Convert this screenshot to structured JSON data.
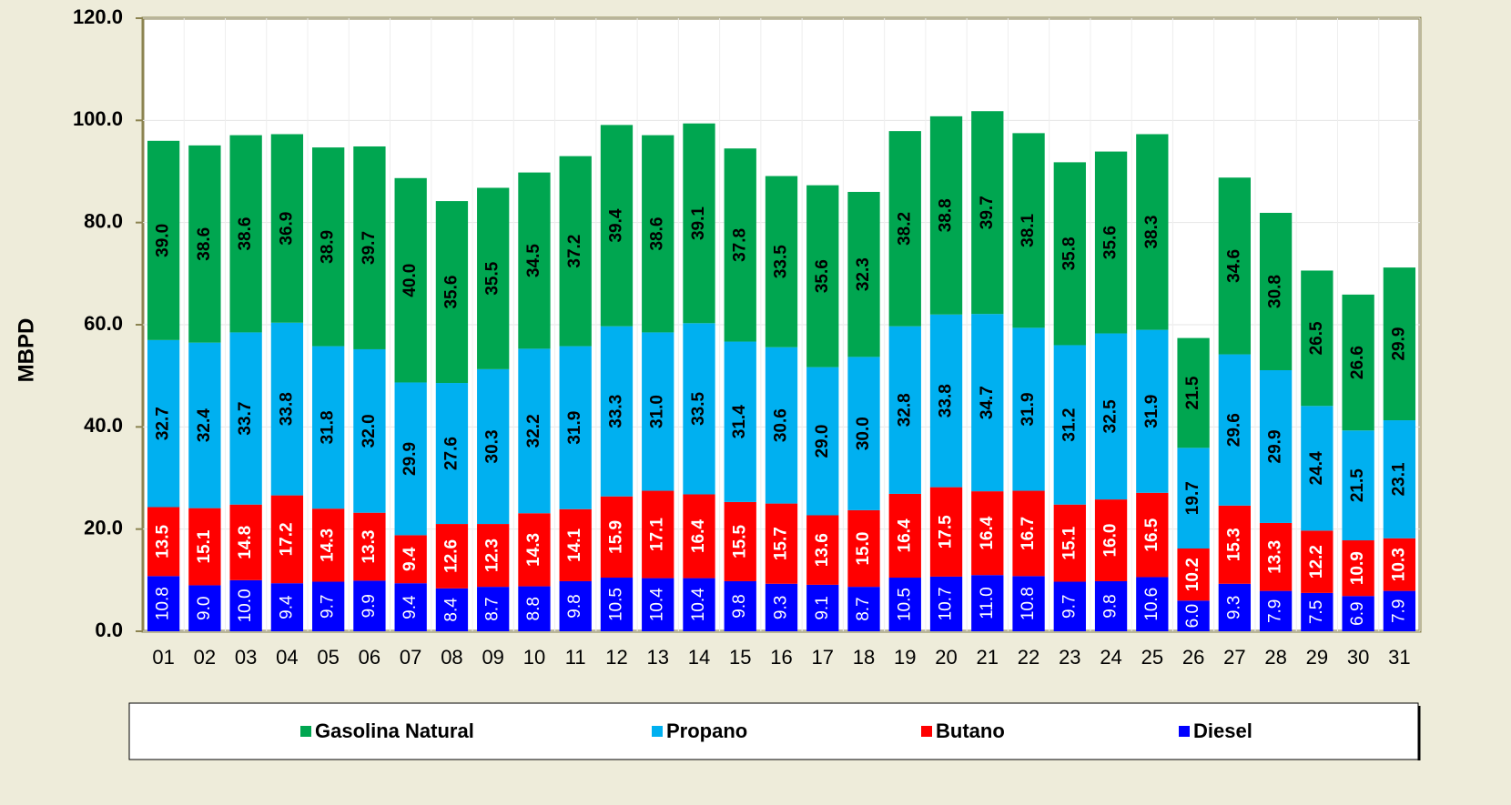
{
  "chart_data": {
    "type": "stacked-bar",
    "y_label": "MBPD",
    "categories": [
      "01",
      "02",
      "03",
      "04",
      "05",
      "06",
      "07",
      "08",
      "09",
      "10",
      "11",
      "12",
      "13",
      "14",
      "15",
      "16",
      "17",
      "18",
      "19",
      "20",
      "21",
      "22",
      "23",
      "24",
      "25",
      "26",
      "27",
      "28",
      "29",
      "30",
      "31"
    ],
    "series": [
      {
        "name": "Diesel",
        "color": "#0000ff",
        "label_color": "#ffffff",
        "values": [
          10.8,
          9.0,
          10.0,
          9.4,
          9.7,
          9.9,
          9.4,
          8.4,
          8.7,
          8.8,
          9.8,
          10.5,
          10.4,
          10.4,
          9.8,
          9.3,
          9.1,
          8.7,
          10.5,
          10.7,
          11.0,
          10.8,
          9.7,
          9.8,
          10.6,
          6.0,
          9.3,
          7.9,
          7.5,
          6.9,
          7.9
        ],
        "value_labels": [
          "10.8",
          "9.0",
          "10.0",
          "9.4",
          "9.7",
          "9.9",
          "9.4",
          "8.4",
          "8.7",
          "8.8",
          "9.8",
          "10.5",
          "10.4",
          "10.4",
          "9.8",
          "9.3",
          "9.1",
          "8.7",
          "10.5",
          "10.7",
          "11.0",
          "10.8",
          "9.7",
          "9.8",
          "10.6",
          "6.0",
          "9.3",
          "7.9",
          "7.5",
          "6.9",
          "7.9"
        ]
      },
      {
        "name": "Butano",
        "color": "#ff0000",
        "label_color": "#ffffff",
        "values": [
          13.5,
          15.1,
          14.8,
          17.2,
          14.3,
          13.3,
          9.4,
          12.6,
          12.3,
          14.3,
          14.1,
          15.9,
          17.1,
          16.4,
          15.5,
          15.7,
          13.6,
          15.0,
          16.4,
          17.5,
          16.4,
          16.7,
          15.1,
          16.0,
          16.5,
          10.2,
          15.3,
          13.3,
          12.2,
          10.9,
          10.3
        ],
        "value_labels": [
          "13.5",
          "15.1",
          "14.8",
          "17.2",
          "14.3",
          "13.3",
          "9.4",
          "12.6",
          "12.3",
          "14.3",
          "14.1",
          "15.9",
          "17.1",
          "16.4",
          "15.5",
          "15.7",
          "13.6",
          "15.0",
          "16.4",
          "17.5",
          "16.4",
          "16.7",
          "15.1",
          "16.0",
          "16.5",
          "10.2",
          "15.3",
          "13.3",
          "12.2",
          "10.9",
          "10.3"
        ]
      },
      {
        "name": "Propano",
        "color": "#00b0f0",
        "label_color": "#000000",
        "values": [
          32.7,
          32.4,
          33.7,
          33.8,
          31.8,
          32.0,
          29.9,
          27.6,
          30.3,
          32.2,
          31.9,
          33.3,
          31.0,
          33.5,
          31.4,
          30.6,
          29.0,
          30.0,
          32.8,
          33.8,
          34.7,
          31.9,
          31.2,
          32.5,
          31.9,
          19.7,
          29.6,
          29.9,
          24.4,
          21.5,
          23.1
        ],
        "value_labels": [
          "32.7",
          "32.4",
          "33.7",
          "33.8",
          "31.8",
          "32.0",
          "29.9",
          "27.6",
          "30.3",
          "32.2",
          "31.9",
          "33.3",
          "31.0",
          "33.5",
          "31.4",
          "30.6",
          "29.0",
          "30.0",
          "32.8",
          "33.8",
          "34.7",
          "31.9",
          "31.2",
          "32.5",
          "31.9",
          "19.7",
          "29.6",
          "29.9",
          "24.4",
          "21.5",
          "23.1"
        ]
      },
      {
        "name": "Gasolina Natural",
        "color": "#00a650",
        "label_color": "#000000",
        "values": [
          39.0,
          38.6,
          38.6,
          36.9,
          38.9,
          39.7,
          40.0,
          35.6,
          35.5,
          34.5,
          37.2,
          39.4,
          38.6,
          39.1,
          37.8,
          33.5,
          35.6,
          32.3,
          38.2,
          38.8,
          39.7,
          38.1,
          35.8,
          35.6,
          38.3,
          21.5,
          34.6,
          30.8,
          26.5,
          26.6,
          29.9
        ],
        "value_labels": [
          "39.0",
          "38.6",
          "38.6",
          "36.9",
          "38.9",
          "39.7",
          "40.0",
          "35.6",
          "35.5",
          "34.5",
          "37.2",
          "39.4",
          "38.6",
          "39.1",
          "37.8",
          "33.5",
          "35.6",
          "32.3",
          "38.2",
          "38.8",
          "39.7",
          "38.1",
          "35.8",
          "35.6",
          "38.3",
          "21.5",
          "34.6",
          "30.8",
          "26.5",
          "26.6",
          "29.9"
        ]
      }
    ],
    "ylim": [
      0,
      120
    ],
    "yticks": [
      {
        "value": 0,
        "label": "0.0"
      },
      {
        "value": 20,
        "label": "20.0"
      },
      {
        "value": 40,
        "label": "40.0"
      },
      {
        "value": 60,
        "label": "60.0"
      },
      {
        "value": 80,
        "label": "80.0"
      },
      {
        "value": 100,
        "label": "100.0"
      },
      {
        "value": 120,
        "label": "120.0"
      }
    ],
    "grid": true,
    "legend": "bottom"
  }
}
